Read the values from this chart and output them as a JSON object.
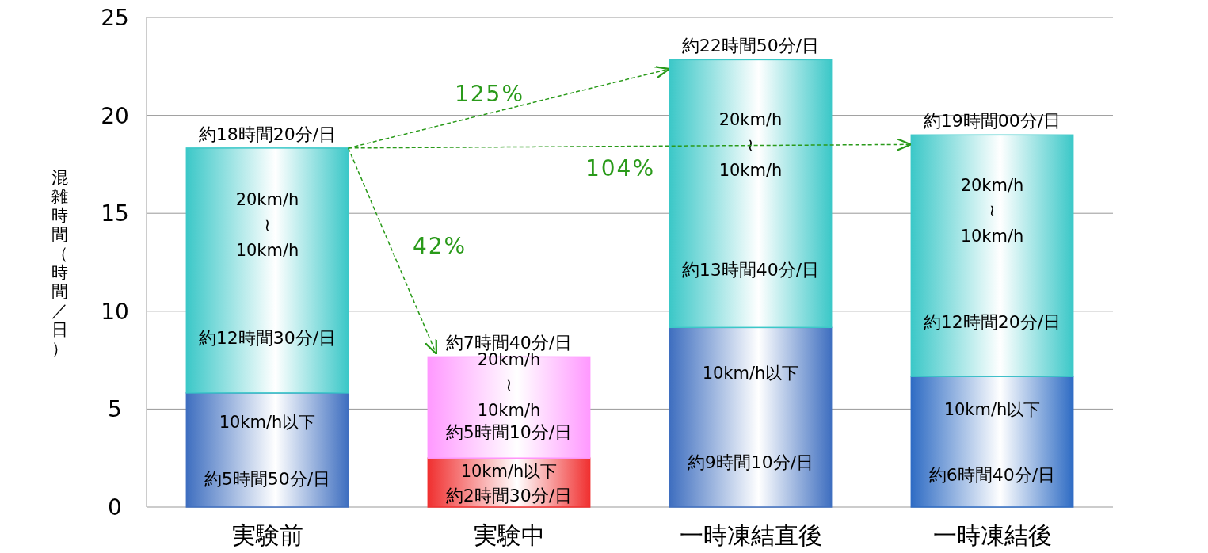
{
  "chart_data": {
    "type": "bar",
    "stacked": true,
    "ylabel": "混雑時間（時間／日）",
    "categories": [
      "実験前",
      "実験中",
      "一時凍結直後",
      "一時凍結後"
    ],
    "series": [
      {
        "name": "10km/h以下",
        "colors": [
          "#3f6fc0",
          "#f03030",
          "#3f6fc0",
          "#2f6cc4"
        ],
        "values": [
          5.83,
          2.5,
          9.17,
          6.67
        ],
        "value_labels": [
          "約5時間50分/日",
          "約2時間30分/日",
          "約9時間10分/日",
          "約6時間40分/日"
        ]
      },
      {
        "name": "20km/h ≀ 10km/h",
        "colors": [
          "#3cc8c8",
          "#ff99ff",
          "#3cc8c8",
          "#3cc8c8"
        ],
        "values": [
          12.5,
          5.17,
          13.67,
          12.33
        ],
        "value_labels": [
          "約12時間30分/日",
          "約5時間10分/日",
          "約13時間40分/日",
          "約12時間20分/日"
        ]
      }
    ],
    "totals": [
      "約18時間20分/日",
      "約7時間40分/日",
      "約22時間50分/日",
      "約19時間00分/日"
    ],
    "annotations": [
      "42%",
      "125%",
      "104%"
    ],
    "ylim": [
      0,
      25
    ],
    "yticks": [
      0,
      5,
      10,
      15,
      20,
      25
    ],
    "grid": "y"
  }
}
